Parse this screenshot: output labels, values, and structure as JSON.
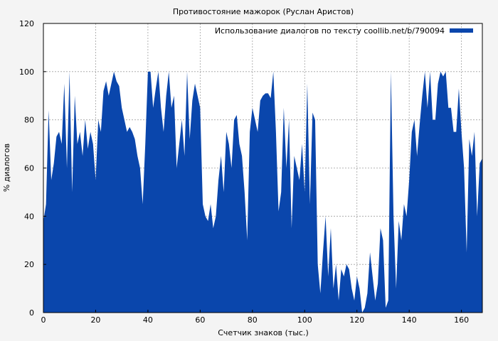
{
  "chart_data": {
    "type": "area",
    "title": "Противостояние мажорок (Руслан Аристов)",
    "xlabel": "Счетчик знаков (тыс.)",
    "ylabel": "% диалогов",
    "xlim": [
      0,
      168
    ],
    "ylim": [
      0,
      120
    ],
    "x_ticks": [
      "0",
      "20",
      "40",
      "60",
      "80",
      "100",
      "120",
      "140",
      "160"
    ],
    "y_ticks": [
      "0",
      "20",
      "40",
      "60",
      "80",
      "100",
      "120"
    ],
    "grid": true,
    "legend_position": "top-right",
    "series": [
      {
        "name": "Использование диалогов по тексту coollib.net/b/790094",
        "color": "#0a46ac",
        "x": [
          0,
          1,
          2,
          3,
          4,
          5,
          6,
          7,
          8,
          9,
          10,
          11,
          12,
          13,
          14,
          15,
          16,
          17,
          18,
          19,
          20,
          21,
          22,
          23,
          24,
          25,
          26,
          27,
          28,
          29,
          30,
          31,
          32,
          33,
          34,
          35,
          36,
          37,
          38,
          39,
          40,
          41,
          42,
          43,
          44,
          45,
          46,
          47,
          48,
          49,
          50,
          51,
          52,
          53,
          54,
          55,
          56,
          57,
          58,
          59,
          60,
          61,
          62,
          63,
          64,
          65,
          66,
          67,
          68,
          69,
          70,
          71,
          72,
          73,
          74,
          75,
          76,
          77,
          78,
          79,
          80,
          81,
          82,
          83,
          84,
          85,
          86,
          87,
          88,
          89,
          90,
          91,
          92,
          93,
          94,
          95,
          96,
          97,
          98,
          99,
          100,
          101,
          102,
          103,
          104,
          105,
          106,
          107,
          108,
          109,
          110,
          111,
          112,
          113,
          114,
          115,
          116,
          117,
          118,
          119,
          120,
          121,
          122,
          123,
          124,
          125,
          126,
          127,
          128,
          129,
          130,
          131,
          132,
          133,
          134,
          135,
          136,
          137,
          138,
          139,
          140,
          141,
          142,
          143,
          144,
          145,
          146,
          147,
          148,
          149,
          150,
          151,
          152,
          153,
          154,
          155,
          156,
          157,
          158,
          159,
          160,
          161,
          162,
          163,
          164,
          165,
          166,
          167,
          168
        ],
        "values": [
          38,
          45,
          84,
          55,
          62,
          73,
          75,
          70,
          95,
          60,
          100,
          50,
          90,
          70,
          75,
          65,
          80,
          68,
          75,
          70,
          55,
          80,
          75,
          92,
          96,
          90,
          95,
          100,
          96,
          94,
          85,
          80,
          75,
          77,
          75,
          72,
          65,
          60,
          45,
          70,
          100,
          100,
          85,
          93,
          100,
          85,
          75,
          90,
          100,
          85,
          90,
          60,
          70,
          80,
          65,
          100,
          72,
          88,
          95,
          90,
          85,
          45,
          40,
          38,
          45,
          35,
          40,
          55,
          65,
          50,
          75,
          70,
          60,
          80,
          82,
          70,
          65,
          50,
          30,
          75,
          85,
          80,
          75,
          88,
          90,
          91,
          91,
          89,
          100,
          75,
          42,
          50,
          85,
          60,
          80,
          35,
          65,
          60,
          55,
          70,
          50,
          95,
          45,
          83,
          80,
          20,
          8,
          25,
          40,
          15,
          35,
          10,
          20,
          5,
          18,
          15,
          20,
          18,
          10,
          5,
          15,
          10,
          0,
          2,
          8,
          25,
          15,
          5,
          12,
          35,
          30,
          2,
          5,
          100,
          40,
          10,
          38,
          30,
          45,
          40,
          55,
          75,
          80,
          65,
          78,
          90,
          100,
          85,
          100,
          80,
          80,
          95,
          100,
          98,
          100,
          85,
          85,
          75,
          75,
          93,
          75,
          60,
          25,
          72,
          65,
          75,
          40,
          62,
          64
        ]
      }
    ]
  }
}
